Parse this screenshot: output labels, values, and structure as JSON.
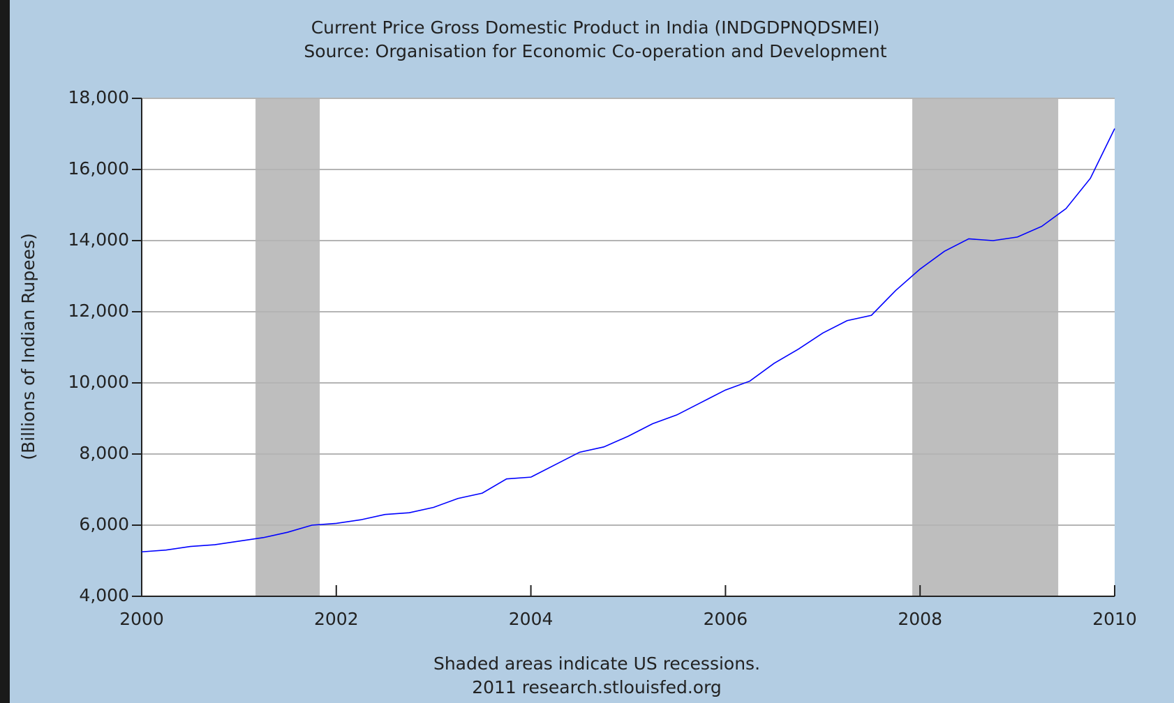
{
  "chart_data": {
    "type": "line",
    "title": "Current Price Gross Domestic Product in India (INDGDPNQDSMEI)",
    "subtitle": "Source: Organisation for Economic Co-operation and Development",
    "y_label": "(Billions of Indian Rupees)",
    "footnote": "Shaded areas indicate US recessions.",
    "source": "2011 research.stlouisfed.org",
    "x": [
      2000,
      2000.25,
      2000.5,
      2000.75,
      2001,
      2001.25,
      2001.5,
      2001.75,
      2002,
      2002.25,
      2002.5,
      2002.75,
      2003,
      2003.25,
      2003.5,
      2003.75,
      2004,
      2004.25,
      2004.5,
      2004.75,
      2005,
      2005.25,
      2005.5,
      2005.75,
      2006,
      2006.25,
      2006.5,
      2006.75,
      2007,
      2007.25,
      2007.5,
      2007.75,
      2008,
      2008.25,
      2008.5,
      2008.75,
      2009,
      2009.25,
      2009.5,
      2009.75,
      2010
    ],
    "series": [
      {
        "name": "INDGDPNQDSMEI",
        "color": "#0000ff",
        "values": [
          5250,
          5300,
          5400,
          5450,
          5550,
          5650,
          5800,
          6000,
          6050,
          6150,
          6300,
          6350,
          6500,
          6750,
          6900,
          7300,
          7350,
          7700,
          8050,
          8200,
          8500,
          8850,
          9100,
          9450,
          9800,
          10050,
          10550,
          10950,
          11400,
          11750,
          11900,
          12600,
          13200,
          13700,
          14050,
          14000,
          14100,
          14400,
          14900,
          15750,
          17150
        ]
      }
    ],
    "recessions": [
      [
        2001.17,
        2001.83
      ],
      [
        2007.92,
        2009.42
      ]
    ],
    "recession_color": "#bebebe",
    "xlim": [
      2000,
      2010
    ],
    "xticks": [
      2000,
      2002,
      2004,
      2006,
      2008,
      2010
    ],
    "ylim": [
      4000,
      18000
    ],
    "yticks": [
      {
        "value": 4000,
        "label": "4,000"
      },
      {
        "value": 6000,
        "label": "6,000"
      },
      {
        "value": 8000,
        "label": "8,000"
      },
      {
        "value": 10000,
        "label": "10,000"
      },
      {
        "value": 12000,
        "label": "12,000"
      },
      {
        "value": 14000,
        "label": "14,000"
      },
      {
        "value": 16000,
        "label": "16,000"
      },
      {
        "value": 18000,
        "label": "18,000"
      }
    ],
    "grid": true
  }
}
